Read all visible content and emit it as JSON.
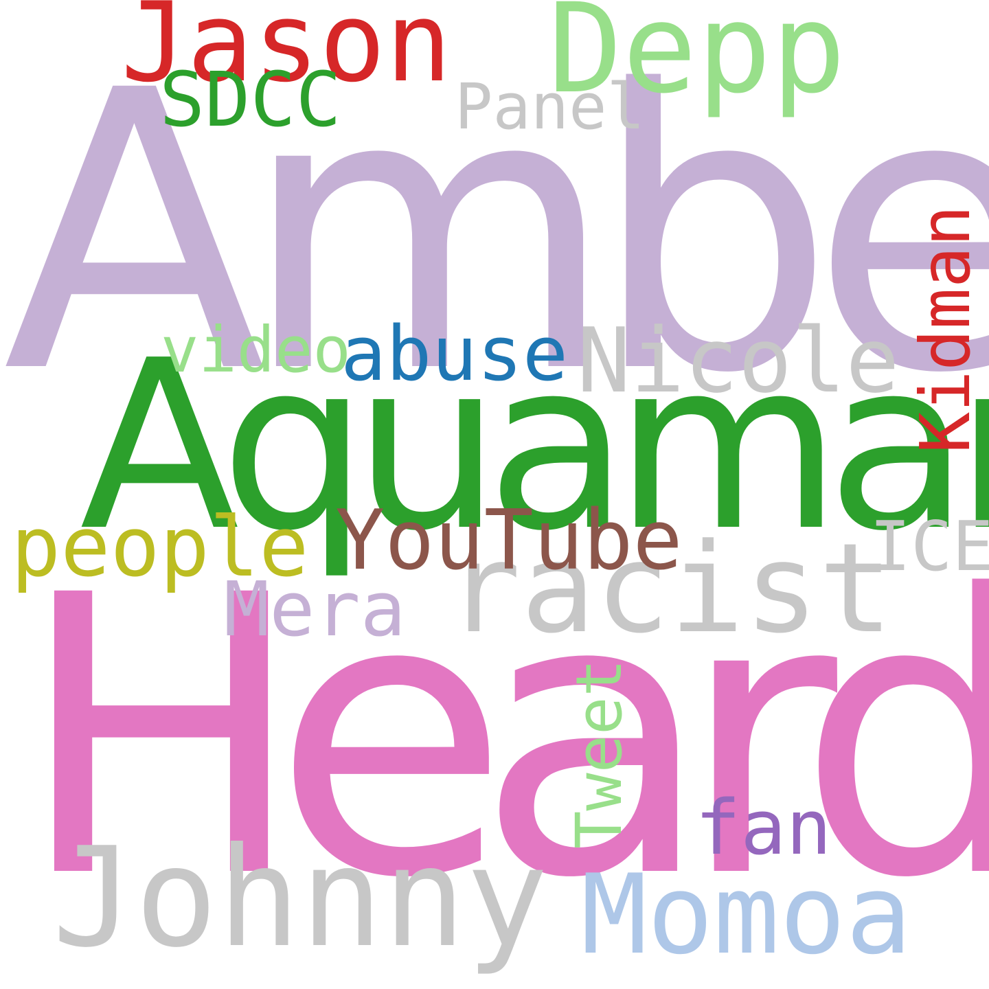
{
  "word_cloud": {
    "background": "#ffffff",
    "words": {
      "amber": {
        "text": "Amber",
        "color": "#c5b0d5"
      },
      "heard": {
        "text": "Heard",
        "color": "#e377c2"
      },
      "aquaman": {
        "text": "Aquaman",
        "color": "#2ca02c"
      },
      "johnny": {
        "text": "Johnny",
        "color": "#c7c7c7"
      },
      "racist": {
        "text": "racist",
        "color": "#c7c7c7"
      },
      "jason": {
        "text": "Jason",
        "color": "#d62728"
      },
      "depp": {
        "text": "Depp",
        "color": "#98df8a"
      },
      "momoa": {
        "text": "Momoa",
        "color": "#aec7e8"
      },
      "nicole": {
        "text": "Nicole",
        "color": "#c7c7c7"
      },
      "abuse": {
        "text": "abuse",
        "color": "#1f77b4"
      },
      "youtube": {
        "text": "YouTube",
        "color": "#8c564b"
      },
      "people": {
        "text": "people",
        "color": "#bcbd22"
      },
      "mera": {
        "text": "Mera",
        "color": "#c5b0d5"
      },
      "fan": {
        "text": "fan",
        "color": "#9467bd"
      },
      "ice": {
        "text": "ICE",
        "color": "#c7c7c7"
      },
      "sdcc": {
        "text": "SDCC",
        "color": "#2ca02c"
      },
      "panel": {
        "text": "Panel",
        "color": "#c7c7c7"
      },
      "video": {
        "text": "video",
        "color": "#98df8a"
      },
      "kidman": {
        "text": "Kidman",
        "color": "#d62728"
      },
      "tweet": {
        "text": "Tweet",
        "color": "#98df8a"
      }
    }
  }
}
